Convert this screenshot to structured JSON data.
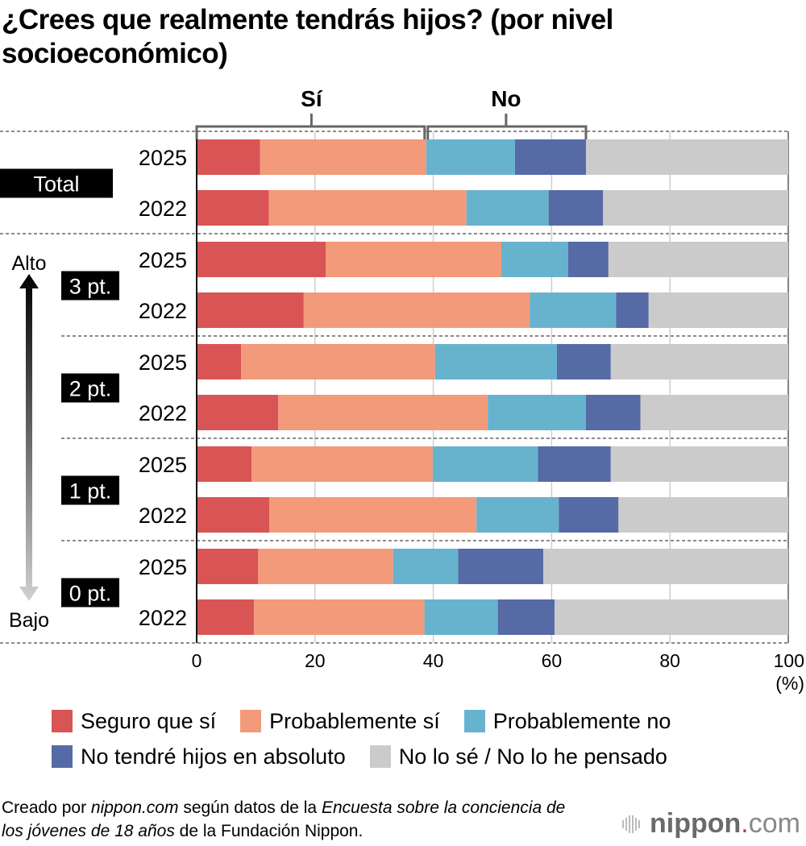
{
  "title": "¿Crees que realmente tendrás hijos? (por nivel socioeconómico)",
  "brackets": {
    "yes_label": "Sí",
    "no_label": "No"
  },
  "axis_side": {
    "high_label": "Alto",
    "low_label": "Bajo"
  },
  "colors": {
    "seguro_si": "#d95555",
    "probablemente_si": "#f29a7a",
    "probablemente_no": "#67b3ce",
    "no_absoluto": "#566aa6",
    "no_lo_se": "#cbcbcb"
  },
  "chart_data": {
    "type": "bar",
    "orientation": "horizontal-stacked",
    "title": "¿Crees que realmente tendrás hijos? (por nivel socioeconómico)",
    "xlabel": "(%)",
    "xlim": [
      0,
      100
    ],
    "xticks": [
      "0",
      "20",
      "40",
      "60",
      "80",
      "100"
    ],
    "grid": true,
    "legend_position": "bottom",
    "series": [
      {
        "name": "Seguro que sí",
        "color": "#d95555"
      },
      {
        "name": "Probablemente sí",
        "color": "#f29a7a"
      },
      {
        "name": "Probablemente no",
        "color": "#67b3ce"
      },
      {
        "name": "No tendré hijos en absoluto",
        "color": "#566aa6"
      },
      {
        "name": "No lo sé / No lo he pensado",
        "color": "#cbcbcb"
      }
    ],
    "groups": [
      {
        "label": "Total",
        "rows": [
          {
            "year": "2025",
            "values": [
              10.7,
              28.1,
              15.0,
              12.0,
              34.2
            ]
          },
          {
            "year": "2022",
            "values": [
              12.2,
              33.4,
              13.9,
              9.2,
              31.3
            ]
          }
        ]
      },
      {
        "label": "3 pt.",
        "rows": [
          {
            "year": "2025",
            "values": [
              21.8,
              29.7,
              11.3,
              6.8,
              30.4
            ]
          },
          {
            "year": "2022",
            "values": [
              18.1,
              38.2,
              14.6,
              5.5,
              23.6
            ]
          }
        ]
      },
      {
        "label": "2 pt.",
        "rows": [
          {
            "year": "2025",
            "values": [
              7.5,
              32.8,
              20.6,
              9.1,
              30.0
            ]
          },
          {
            "year": "2022",
            "values": [
              13.8,
              35.4,
              16.6,
              9.2,
              25.0
            ]
          }
        ]
      },
      {
        "label": "1 pt.",
        "rows": [
          {
            "year": "2025",
            "values": [
              9.3,
              30.6,
              17.8,
              12.3,
              30.0
            ]
          },
          {
            "year": "2022",
            "values": [
              12.3,
              35.0,
              13.9,
              10.1,
              28.7
            ]
          }
        ]
      },
      {
        "label": "0 pt.",
        "rows": [
          {
            "year": "2025",
            "values": [
              10.4,
              22.8,
              11.0,
              14.4,
              41.4
            ]
          },
          {
            "year": "2022",
            "values": [
              9.7,
              28.8,
              12.4,
              9.6,
              39.5
            ]
          }
        ]
      }
    ]
  },
  "legend": {
    "row1": [
      "Seguro que sí",
      "Probablemente sí",
      "Probablemente no"
    ],
    "row2": [
      "No tendré hijos en absoluto",
      "No lo sé / No lo he pensado"
    ]
  },
  "source": {
    "part1": "Creado por ",
    "part2": "nippon.com",
    "part3": " según datos de la ",
    "part4": "Encuesta sobre la conciencia de los jóvenes de 18 años",
    "part5": " de la Fundación Nippon."
  },
  "logo": {
    "brand": "nippon",
    "dot": ".",
    "tld": "com"
  }
}
